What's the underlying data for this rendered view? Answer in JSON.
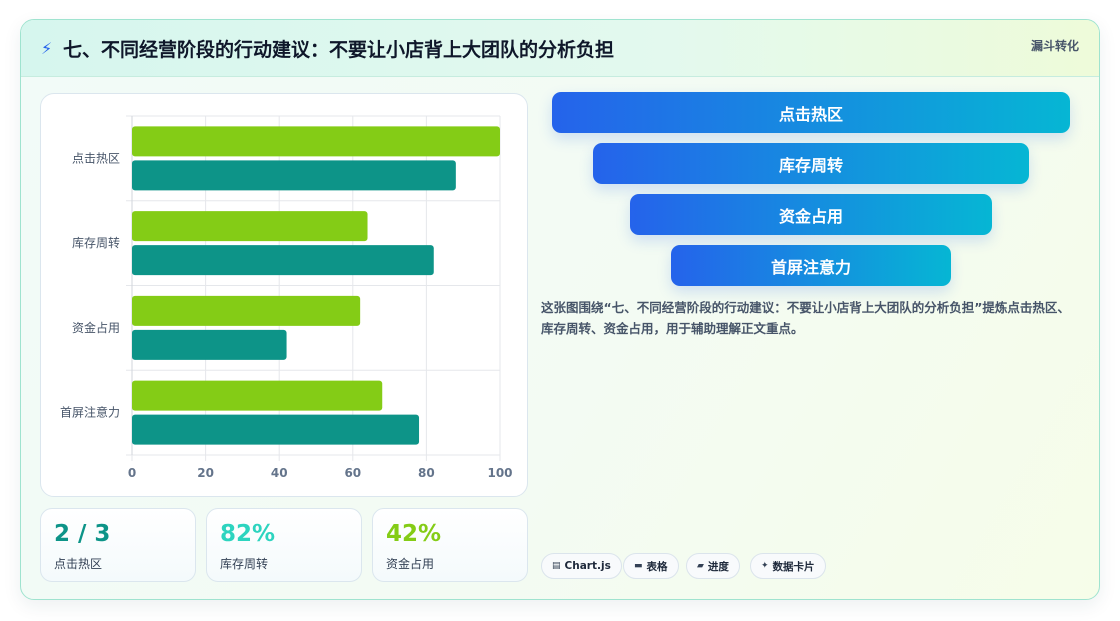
{
  "header": {
    "icon": "lightning-icon",
    "title": "七、不同经营阶段的行动建议：不要让小店背上大团队的分析负担",
    "tag": "漏斗转化"
  },
  "chart_data": {
    "type": "bar",
    "orientation": "horizontal",
    "categories": [
      "点击热区",
      "库存周转",
      "资金占用",
      "首屏注意力"
    ],
    "series": [
      {
        "values": [
          100,
          64,
          62,
          68
        ],
        "color": "#84cc16"
      },
      {
        "values": [
          88,
          82,
          42,
          78
        ],
        "color": "#0d9488"
      }
    ],
    "xlim": [
      0,
      100
    ],
    "xticks": [
      "0",
      "20",
      "40",
      "60",
      "80",
      "100"
    ],
    "grid": true
  },
  "stats": [
    {
      "value": "2 / 3",
      "label": "点击热区",
      "color": "#0d9488"
    },
    {
      "value": "82%",
      "label": "库存周转",
      "color": "#2dd4bf"
    },
    {
      "value": "42%",
      "label": "资金占用",
      "color": "#84cc16"
    }
  ],
  "funnel": [
    {
      "label": "点击热区"
    },
    {
      "label": "库存周转"
    },
    {
      "label": "资金占用"
    },
    {
      "label": "首屏注意力"
    }
  ],
  "description": "这张图围绕“七、不同经营阶段的行动建议：不要让小店背上大团队的分析负担”提炼点击热区、库存周转、资金占用，用于辅助理解正文重点。",
  "chips": [
    {
      "icon": "chart-icon",
      "glyph": "▤",
      "label": "Chart.js"
    },
    {
      "icon": "table-icon",
      "glyph": "▬",
      "label": "表格"
    },
    {
      "icon": "progress-icon",
      "glyph": "▰",
      "label": "进度"
    },
    {
      "icon": "sparkle-icon",
      "glyph": "✦",
      "label": "数据卡片"
    }
  ]
}
